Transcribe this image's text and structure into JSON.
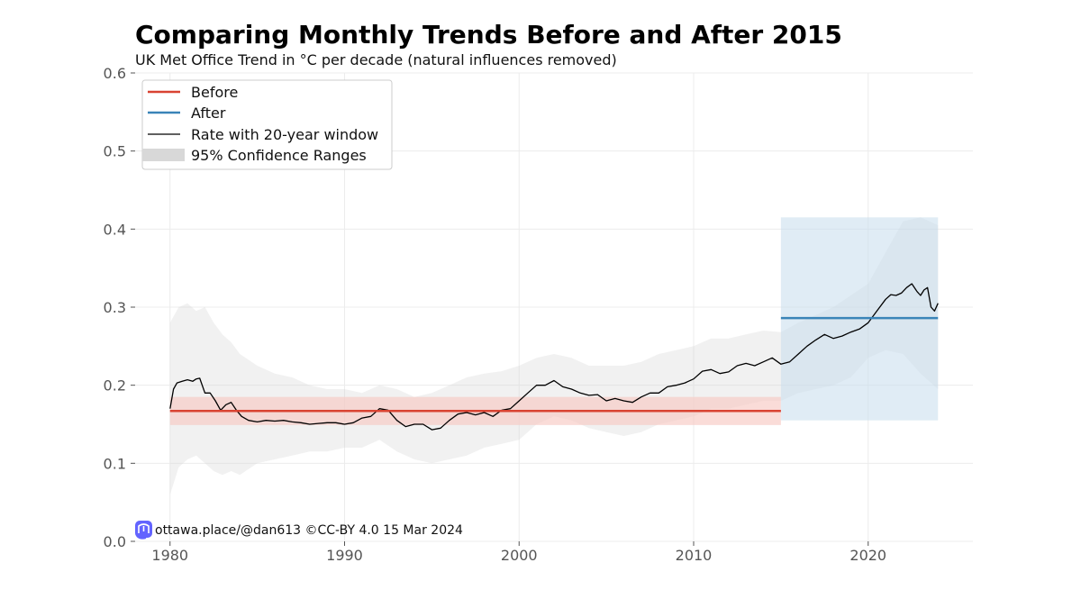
{
  "header": {
    "title": "Comparing Monthly Trends Before and After 2015",
    "subtitle": "UK Met Office Trend in °C per decade (natural influences removed)"
  },
  "credit": {
    "text": "ottawa.place/@dan613 ©CC-BY 4.0  15 Mar 2024",
    "icon": "mastodon-icon"
  },
  "colors": {
    "before": "#d94332",
    "before_band": "#f7c9c3",
    "after": "#3a84b8",
    "after_band": "#c6dcec",
    "rate": "#000000",
    "confidence": "#d8d8d8"
  },
  "chart_data": {
    "type": "line",
    "title": "Comparing Monthly Trends Before and After 2015",
    "subtitle": "UK Met Office Trend in °C per decade (natural influences removed)",
    "xlim": [
      1978,
      2026
    ],
    "ylim": [
      0,
      0.6
    ],
    "x_ticks": [
      1980,
      1990,
      2000,
      2010,
      2020
    ],
    "y_ticks": [
      0.0,
      0.1,
      0.2,
      0.3,
      0.4,
      0.5,
      0.6
    ],
    "grid": true,
    "legend_position": "top-left",
    "legend": [
      "Before",
      "After",
      "Rate with 20-year window",
      "95% Confidence Ranges"
    ],
    "series": [
      {
        "name": "Before",
        "kind": "constant",
        "x": [
          1980,
          2015
        ],
        "value": 0.167,
        "ci": [
          0.149,
          0.185
        ]
      },
      {
        "name": "After",
        "kind": "constant",
        "x": [
          2015,
          2024
        ],
        "value": 0.286,
        "ci": [
          0.155,
          0.415
        ]
      },
      {
        "name": "Rate with 20-year window",
        "kind": "line",
        "x": [
          1980.0,
          1980.2,
          1980.4,
          1980.7,
          1981.0,
          1981.3,
          1981.5,
          1981.7,
          1982.0,
          1982.3,
          1982.6,
          1982.9,
          1983.2,
          1983.5,
          1983.8,
          1984.1,
          1984.5,
          1985.0,
          1985.5,
          1986.0,
          1986.5,
          1987.0,
          1987.5,
          1988.0,
          1988.5,
          1989.0,
          1989.5,
          1990.0,
          1990.5,
          1991.0,
          1991.5,
          1992.0,
          1992.5,
          1993.0,
          1993.5,
          1994.0,
          1994.5,
          1995.0,
          1995.5,
          1996.0,
          1996.5,
          1997.0,
          1997.5,
          1998.0,
          1998.5,
          1999.0,
          1999.5,
          2000.0,
          2000.5,
          2001.0,
          2001.5,
          2002.0,
          2002.5,
          2003.0,
          2003.5,
          2004.0,
          2004.5,
          2005.0,
          2005.5,
          2006.0,
          2006.5,
          2007.0,
          2007.5,
          2008.0,
          2008.5,
          2009.0,
          2009.5,
          2010.0,
          2010.5,
          2011.0,
          2011.5,
          2012.0,
          2012.5,
          2013.0,
          2013.5,
          2014.0,
          2014.5,
          2015.0,
          2015.5,
          2016.0,
          2016.5,
          2017.0,
          2017.5,
          2018.0,
          2018.5,
          2019.0,
          2019.5,
          2020.0,
          2020.5,
          2021.0,
          2021.3,
          2021.6,
          2021.9,
          2022.2,
          2022.5,
          2022.8,
          2023.0,
          2023.2,
          2023.4,
          2023.6,
          2023.8,
          2024.0
        ],
        "y": [
          0.17,
          0.195,
          0.203,
          0.205,
          0.207,
          0.205,
          0.208,
          0.209,
          0.19,
          0.19,
          0.18,
          0.168,
          0.175,
          0.178,
          0.168,
          0.16,
          0.155,
          0.153,
          0.155,
          0.154,
          0.155,
          0.153,
          0.152,
          0.15,
          0.151,
          0.152,
          0.152,
          0.15,
          0.152,
          0.158,
          0.16,
          0.17,
          0.168,
          0.155,
          0.147,
          0.15,
          0.15,
          0.143,
          0.145,
          0.155,
          0.163,
          0.165,
          0.162,
          0.165,
          0.16,
          0.168,
          0.17,
          0.18,
          0.19,
          0.2,
          0.2,
          0.206,
          0.198,
          0.195,
          0.19,
          0.187,
          0.188,
          0.18,
          0.183,
          0.18,
          0.178,
          0.185,
          0.19,
          0.19,
          0.198,
          0.2,
          0.203,
          0.208,
          0.218,
          0.22,
          0.215,
          0.217,
          0.225,
          0.228,
          0.225,
          0.23,
          0.235,
          0.227,
          0.23,
          0.24,
          0.25,
          0.258,
          0.265,
          0.26,
          0.263,
          0.268,
          0.272,
          0.28,
          0.295,
          0.31,
          0.316,
          0.315,
          0.318,
          0.325,
          0.33,
          0.32,
          0.315,
          0.322,
          0.325,
          0.3,
          0.295,
          0.305
        ]
      },
      {
        "name": "95% Confidence Ranges",
        "kind": "band",
        "x": [
          1980.0,
          1980.5,
          1981.0,
          1981.5,
          1982.0,
          1982.5,
          1983.0,
          1983.5,
          1984.0,
          1985.0,
          1986.0,
          1987.0,
          1988.0,
          1989.0,
          1990.0,
          1991.0,
          1992.0,
          1993.0,
          1994.0,
          1995.0,
          1996.0,
          1997.0,
          1998.0,
          1999.0,
          2000.0,
          2001.0,
          2002.0,
          2003.0,
          2004.0,
          2005.0,
          2006.0,
          2007.0,
          2008.0,
          2009.0,
          2010.0,
          2011.0,
          2012.0,
          2013.0,
          2014.0,
          2015.0,
          2016.0,
          2017.0,
          2018.0,
          2019.0,
          2020.0,
          2021.0,
          2022.0,
          2023.0,
          2024.0
        ],
        "upper": [
          0.28,
          0.3,
          0.305,
          0.295,
          0.3,
          0.28,
          0.265,
          0.255,
          0.24,
          0.225,
          0.215,
          0.21,
          0.2,
          0.195,
          0.195,
          0.19,
          0.2,
          0.195,
          0.185,
          0.19,
          0.2,
          0.21,
          0.215,
          0.218,
          0.225,
          0.235,
          0.24,
          0.235,
          0.225,
          0.225,
          0.225,
          0.23,
          0.24,
          0.245,
          0.25,
          0.26,
          0.26,
          0.265,
          0.27,
          0.268,
          0.28,
          0.29,
          0.3,
          0.315,
          0.33,
          0.37,
          0.41,
          0.415,
          0.405
        ],
        "lower": [
          0.06,
          0.095,
          0.105,
          0.11,
          0.1,
          0.09,
          0.085,
          0.09,
          0.085,
          0.1,
          0.105,
          0.11,
          0.115,
          0.115,
          0.12,
          0.12,
          0.13,
          0.115,
          0.105,
          0.1,
          0.105,
          0.11,
          0.12,
          0.125,
          0.13,
          0.15,
          0.16,
          0.155,
          0.145,
          0.14,
          0.135,
          0.14,
          0.15,
          0.155,
          0.16,
          0.17,
          0.17,
          0.175,
          0.18,
          0.18,
          0.19,
          0.195,
          0.2,
          0.21,
          0.235,
          0.245,
          0.24,
          0.215,
          0.195
        ]
      }
    ]
  }
}
